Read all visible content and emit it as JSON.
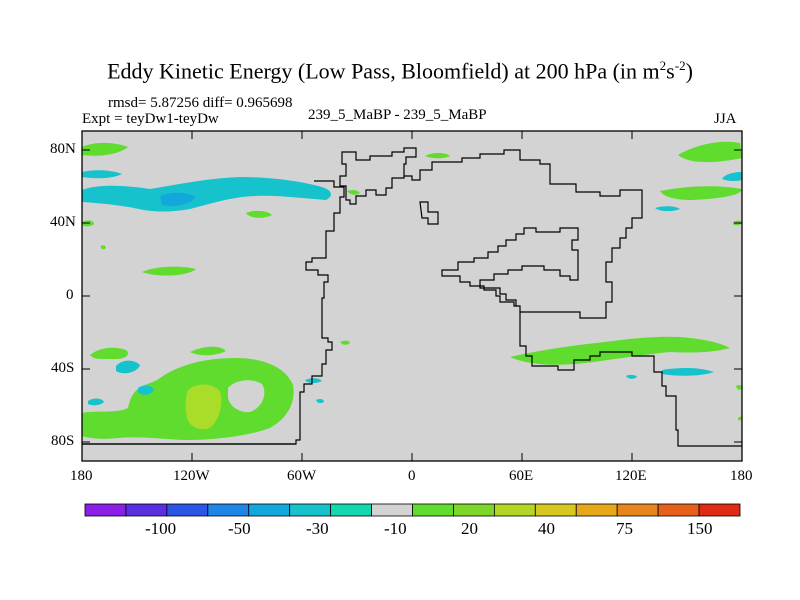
{
  "title": {
    "main": "Eddy Kinetic Energy (Low Pass, Bloomfield) at 200 hPa (in m",
    "sup1": "2",
    "mid": "s",
    "sup2": "-2",
    "close": ")"
  },
  "stats": "rmsd= 5.87256  diff= 0.965698",
  "expt": "Expt = teyDw1-teyDw",
  "model": "239_5_MaBP - 239_5_MaBP",
  "season": "JJA",
  "lat_ticks": [
    "80N",
    "40N",
    "0",
    "40S",
    "80S"
  ],
  "lon_ticks": [
    "180",
    "120W",
    "60W",
    "0",
    "60E",
    "120E",
    "180"
  ],
  "colorbar": {
    "labels": [
      "-100",
      "-50",
      "-30",
      "-10",
      "20",
      "40",
      "75",
      "150"
    ],
    "colors": [
      "#8a1fe6",
      "#5a2fe0",
      "#2a55e6",
      "#1e86e6",
      "#13a8dc",
      "#16c2cc",
      "#12d8b0",
      "#d3d3d3",
      "#5fdc2e",
      "#7fd62a",
      "#b2d626",
      "#d6c81e",
      "#e6a816",
      "#e6861a",
      "#e6601c",
      "#e02a14"
    ]
  },
  "colors": {
    "land_bg": "#d3d3d3",
    "positive": "#5fdc2e",
    "strong_positive": "#aadc2a",
    "negative": "#16c2cc",
    "strong_negative": "#13a8dc"
  }
}
